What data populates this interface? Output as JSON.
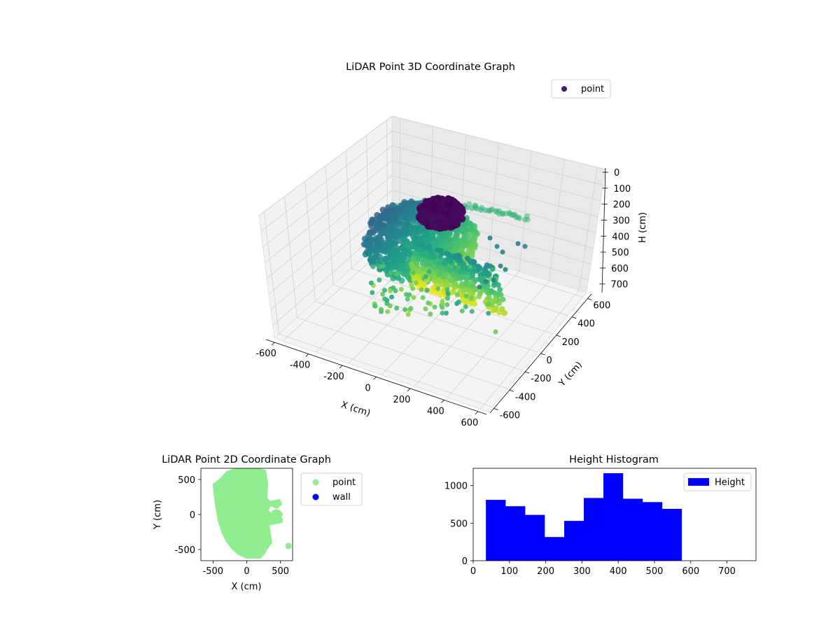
{
  "chart_data": [
    {
      "type": "scatter3d",
      "title": "LiDAR Point 3D Coordinate Graph",
      "xlabel": "X (cm)",
      "ylabel": "Y (cm)",
      "zlabel": "H (cm)",
      "xlim": [
        -650,
        650
      ],
      "ylim": [
        -650,
        650
      ],
      "zlim": [
        0,
        780
      ],
      "z_inverted": true,
      "x_ticks": [
        -600,
        -400,
        -200,
        0,
        200,
        400,
        600
      ],
      "y_ticks": [
        -600,
        -400,
        -200,
        0,
        200,
        400,
        600
      ],
      "z_ticks": [
        0,
        100,
        200,
        300,
        400,
        500,
        600,
        700
      ],
      "colormap": "viridis",
      "grid": true,
      "legend": {
        "placement": "top-right",
        "entries": [
          {
            "name": "point",
            "color": "#481a6c"
          }
        ]
      }
    },
    {
      "type": "scatter",
      "title": "LiDAR Point 2D Coordinate Graph",
      "xlabel": "X (cm)",
      "ylabel": "Y (cm)",
      "xlim": [
        -680,
        680
      ],
      "ylim": [
        -660,
        660
      ],
      "x_ticks": [
        -500,
        0,
        500
      ],
      "y_ticks": [
        -500,
        0,
        500
      ],
      "legend": {
        "placement": "outside-right",
        "entries": [
          {
            "name": "point",
            "color": "#90ee90"
          },
          {
            "name": "wall",
            "color": "#0000ff"
          }
        ]
      },
      "outliers": [
        {
          "x": 620,
          "y": -450
        }
      ]
    },
    {
      "type": "histogram",
      "title": "Height Histogram",
      "xlim": [
        0,
        780
      ],
      "ylim": [
        0,
        1230
      ],
      "x_ticks": [
        0,
        100,
        200,
        300,
        400,
        500,
        600,
        700
      ],
      "y_ticks": [
        0,
        500,
        1000
      ],
      "bar_color": "#0000ff",
      "legend": {
        "placement": "top-right",
        "entries": [
          {
            "name": "Height",
            "color": "#0000ff"
          }
        ]
      },
      "bins": [
        35,
        89,
        143,
        197,
        251,
        305,
        359,
        413,
        467,
        521,
        575
      ],
      "counts": [
        810,
        725,
        610,
        315,
        530,
        835,
        1165,
        825,
        780,
        690
      ]
    }
  ]
}
